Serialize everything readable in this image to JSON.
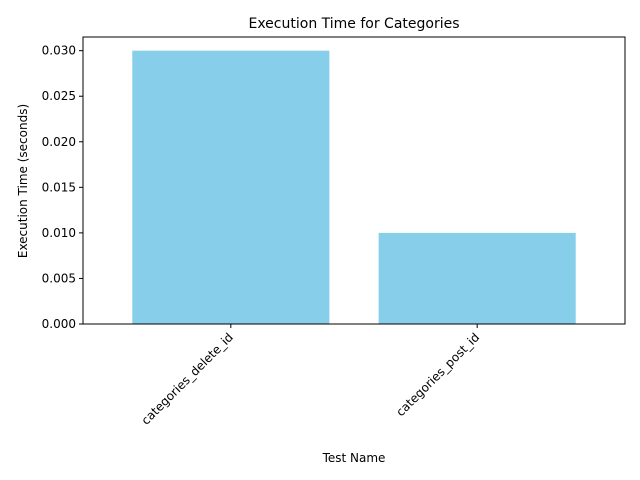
{
  "chart_data": {
    "type": "bar",
    "title": "Execution Time for Categories",
    "xlabel": "Test Name",
    "ylabel": "Execution Time (seconds)",
    "categories": [
      "categories_delete_id",
      "categories_post_id"
    ],
    "values": [
      0.03,
      0.01
    ],
    "ylim": [
      0,
      0.0315
    ],
    "yticks": [
      "0.000",
      "0.005",
      "0.010",
      "0.015",
      "0.020",
      "0.025",
      "0.030"
    ],
    "bar_color": "#87ceeb",
    "grid": false,
    "legend": "none"
  }
}
